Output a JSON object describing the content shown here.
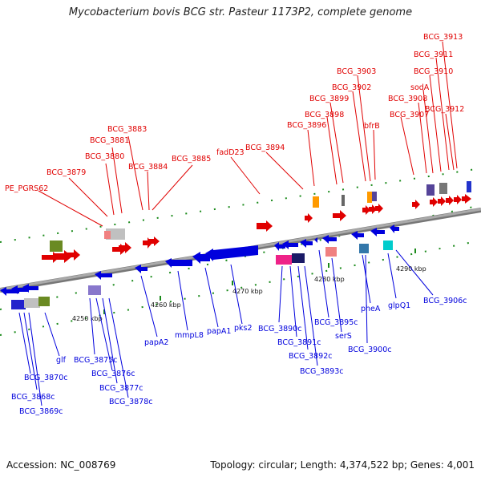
{
  "title": "Mycobacterium bovis BCG str. Pasteur 1173P2, complete genome",
  "footer": {
    "accession": "Accession: NC_008769",
    "summary": "Topology: circular; Length: 4,374,522 bp; Genes: 4,001"
  },
  "colors": {
    "forward": "#e00000",
    "reverse": "#0000dd",
    "backbone": "#999999",
    "tick": "#1a8a1a"
  },
  "scale": [
    "4250 kbp",
    "4260 kbp",
    "4270 kbp",
    "4280 kbp",
    "4290 kbp"
  ],
  "genes_top": [
    "PE_PGRS62",
    "BCG_3879",
    "BCG_3880",
    "BCG_3881",
    "BCG_3883",
    "BCG_3884",
    "BCG_3885",
    "fadD23",
    "BCG_3894",
    "BCG_3896",
    "BCG_3898",
    "BCG_3899",
    "BCG_3902",
    "BCG_3903",
    "bfrB",
    "BCG_3907",
    "BCG_3908",
    "sodA",
    "BCG_3910",
    "BCG_3911",
    "BCG_3912",
    "BCG_3913"
  ],
  "genes_bottom": [
    "BCG_3868c",
    "BCG_3869c",
    "BCG_3870c",
    "glf",
    "BCG_3875c",
    "BCG_3876c",
    "BCG_3877c",
    "BCG_3878c",
    "papA2",
    "mmpL8",
    "papA1",
    "pks2",
    "BCG_3890c",
    "BCG_3891c",
    "BCG_3892c",
    "BCG_3893c",
    "BCG_3895c",
    "serS",
    "pheA",
    "BCG_3900c",
    "glpQ1",
    "BCG_3906c"
  ]
}
